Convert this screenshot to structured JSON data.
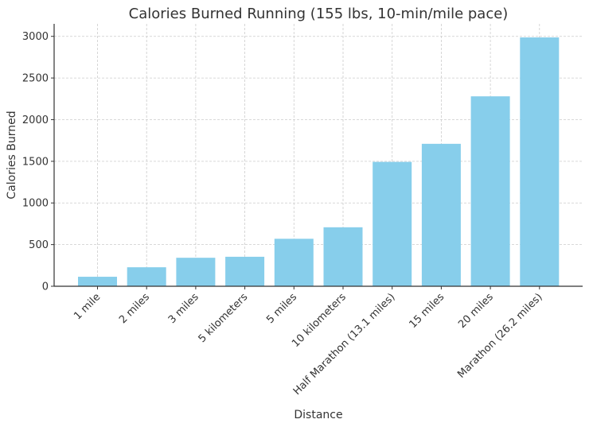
{
  "chart_data": {
    "type": "bar",
    "title": "Calories Burned Running (155 lbs, 10-min/mile pace)",
    "xlabel": "Distance",
    "ylabel": "Calories Burned",
    "categories": [
      "1 mile",
      "2 miles",
      "3 miles",
      "5 kilometers",
      "5 miles",
      "10 kilometers",
      "Half Marathon (13.1 miles)",
      "15 miles",
      "20 miles",
      "Marathon (26.2 miles)"
    ],
    "values": [
      114,
      228,
      342,
      354,
      570,
      708,
      1493,
      1710,
      2280,
      2987
    ],
    "ylim": [
      0,
      3150
    ],
    "yticks": [
      0,
      500,
      1000,
      1500,
      2000,
      2500,
      3000
    ],
    "grid": true,
    "bar_color": "#87ceeb"
  }
}
